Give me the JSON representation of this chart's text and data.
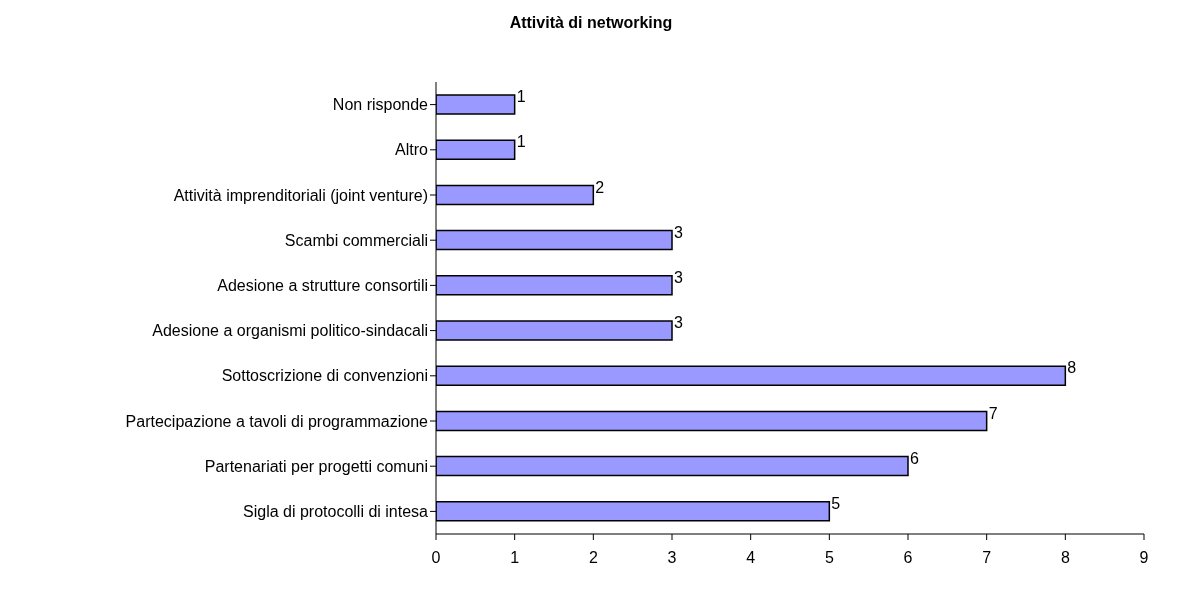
{
  "chart_data": {
    "type": "bar",
    "orientation": "horizontal",
    "title": "Attività di networking",
    "categories": [
      "Non risponde",
      "Altro",
      "Attività imprenditoriali (joint venture)",
      "Scambi commerciali",
      "Adesione a strutture consortili",
      "Adesione a organismi politico-sindacali",
      "Sottoscrizione di convenzioni",
      "Partecipazione a tavoli di programmazione",
      "Partenariati per progetti comuni",
      "Sigla di protocolli di intesa"
    ],
    "values": [
      1,
      1,
      2,
      3,
      3,
      3,
      8,
      7,
      6,
      5
    ],
    "color": "#9999ff",
    "data_labels": true,
    "xlim": [
      0,
      9
    ],
    "xticks": [
      0,
      1,
      2,
      3,
      4,
      5,
      6,
      7,
      8,
      9
    ]
  }
}
